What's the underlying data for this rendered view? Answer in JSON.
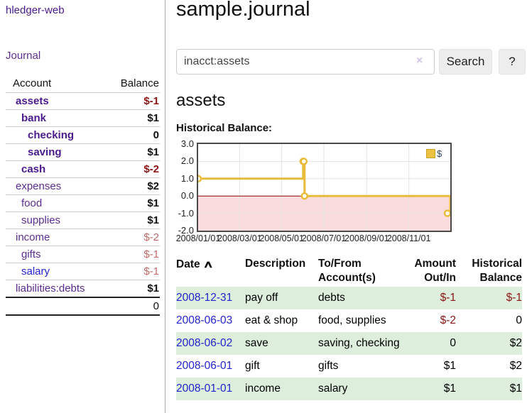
{
  "colors": {
    "accent_purple": "#5c2d91",
    "link_blue": "#2424cf",
    "negative_strong": "#8b1515",
    "negative_soft": "#c06a6a",
    "row_green": "#ddeedd",
    "chart_gold": "#e8bb3a",
    "chart_pink": "#fbdcdc",
    "chart_zero_red": "#8b0000"
  },
  "sidebar": {
    "brand": "hledger-web",
    "journal_link": "Journal",
    "accounts": {
      "account_header": "Account",
      "balance_header": "Balance",
      "rows": [
        {
          "name": "assets",
          "depth": 1,
          "bold": true,
          "balance": "$-1",
          "neg": "strong"
        },
        {
          "name": "bank",
          "depth": 2,
          "bold": true,
          "balance": "$1"
        },
        {
          "name": "checking",
          "depth": 3,
          "bold": true,
          "balance": "0"
        },
        {
          "name": "saving",
          "depth": 3,
          "bold": true,
          "balance": "$1"
        },
        {
          "name": "cash",
          "depth": 2,
          "bold": true,
          "balance": "$-2",
          "neg": "strong"
        },
        {
          "name": "expenses",
          "depth": 1,
          "bold": false,
          "balance": "$2"
        },
        {
          "name": "food",
          "depth": 2,
          "bold": false,
          "balance": "$1"
        },
        {
          "name": "supplies",
          "depth": 2,
          "bold": false,
          "balance": "$1"
        },
        {
          "name": "income",
          "depth": 1,
          "bold": false,
          "balance": "$-2",
          "neg": "soft"
        },
        {
          "name": "gifts",
          "depth": 2,
          "bold": false,
          "balance": "$-1",
          "neg": "soft"
        },
        {
          "name": "salary",
          "depth": 2,
          "bold": false,
          "balance": "$-1",
          "neg": "soft",
          "blue": true
        },
        {
          "name": "liabilities:debts",
          "depth": 1,
          "bold": false,
          "balance": "$1"
        }
      ],
      "total": "0"
    }
  },
  "main": {
    "title": "sample.journal",
    "search": {
      "value": "inacct:assets",
      "clear_icon": "×",
      "button_label": "Search",
      "help_label": "?"
    },
    "account_heading": "assets",
    "chart_label": "Historical Balance:",
    "register": {
      "headers": [
        "Date",
        "Description",
        "To/From Account(s)",
        "Amount Out/In",
        "Historical Balance"
      ],
      "sort_icon": "∧",
      "rows": [
        {
          "date": "2008-12-31",
          "description": "pay off",
          "accounts": "debts",
          "amount": "$-1",
          "balance": "$-1"
        },
        {
          "date": "2008-06-03",
          "description": "eat & shop",
          "accounts": "food, supplies",
          "amount": "$-2",
          "balance": "0"
        },
        {
          "date": "2008-06-02",
          "description": "save",
          "accounts": "saving, checking",
          "amount": "0",
          "balance": "$2"
        },
        {
          "date": "2008-06-01",
          "description": "gift",
          "accounts": "gifts",
          "amount": "$1",
          "balance": "$2"
        },
        {
          "date": "2008-01-01",
          "description": "income",
          "accounts": "salary",
          "amount": "$1",
          "balance": "$1"
        }
      ]
    }
  },
  "chart_data": {
    "type": "line",
    "step": true,
    "title": "Historical Balance",
    "series": [
      {
        "name": "$",
        "points": [
          [
            "2008-01-01",
            1
          ],
          [
            "2008-06-01",
            2
          ],
          [
            "2008-06-02",
            2
          ],
          [
            "2008-06-03",
            0
          ],
          [
            "2008-12-31",
            -1
          ]
        ]
      }
    ],
    "x_domain": [
      "2008-01-01",
      "2008-12-31"
    ],
    "ylim": [
      -2,
      3
    ],
    "yticks": [
      "3.0",
      "2.0",
      "1.0",
      "0.0",
      "-1.0",
      "-2.0"
    ],
    "xticks": [
      "2008/01/01",
      "2008/03/01",
      "2008/05/01",
      "2008/07/01",
      "2008/09/01",
      "2008/11/01"
    ],
    "legend": {
      "label": "$",
      "position": "top-right"
    },
    "grid": true,
    "line_color": "#e8bb3a",
    "marker_fill": "#ffffff",
    "negative_fill": "#fbdcdc",
    "zero_line_color": "#8b0000",
    "grid_color": "#e3e3e3"
  }
}
